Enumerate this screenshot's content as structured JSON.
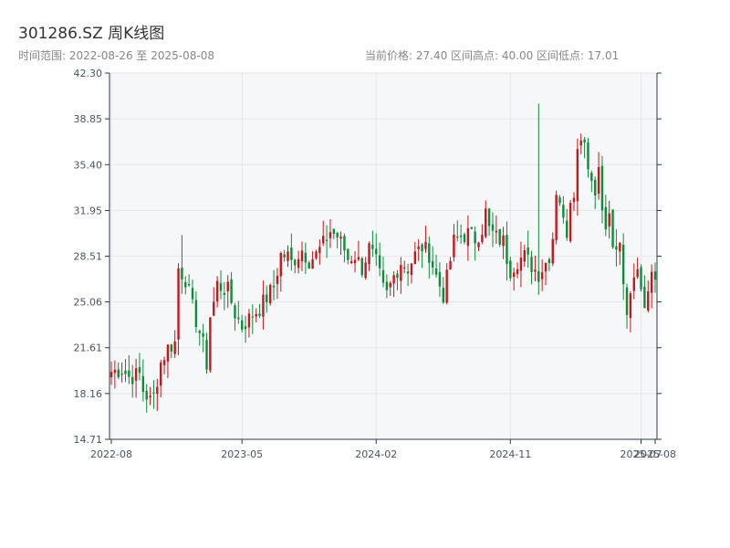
{
  "header": {
    "title": "301286.SZ 周K线图",
    "range_text": "时间范围: 2022-08-26 至 2025-08-08",
    "stats_text": "当前价格: 27.40  区间高点: 40.00  区间低点: 17.01"
  },
  "colors": {
    "up": "#c8161d",
    "down": "#0e8c3a",
    "plot_bg": "#f6f7f9",
    "grid": "#e3e6ea",
    "axis": "#2d3a4a"
  },
  "chart_data": {
    "type": "candlestick",
    "title": "301286.SZ 周K线图",
    "ylim": [
      14.71,
      42.3
    ],
    "y_ticks": [
      "42.30",
      "38.85",
      "35.40",
      "31.95",
      "28.51",
      "25.06",
      "21.61",
      "18.16",
      "14.71"
    ],
    "x_ticks": [
      "2022-08",
      "2023-05",
      "2024-02",
      "2024-11",
      "2025-07",
      "2025-08"
    ],
    "n_weeks": 155,
    "anchors": [
      [
        0,
        19.8
      ],
      [
        3,
        20.0
      ],
      [
        5,
        19.4
      ],
      [
        8,
        19.6
      ],
      [
        9,
        18.4
      ],
      [
        11,
        17.6
      ],
      [
        12,
        18.0
      ],
      [
        14,
        20.5
      ],
      [
        16,
        21.6
      ],
      [
        18,
        22.0
      ],
      [
        19,
        27.6
      ],
      [
        21,
        26.8
      ],
      [
        23,
        24.6
      ],
      [
        25,
        22.8
      ],
      [
        26,
        21.8
      ],
      [
        27,
        20.4
      ],
      [
        28,
        24.0
      ],
      [
        29,
        25.0
      ],
      [
        30,
        26.4
      ],
      [
        31,
        26.2
      ],
      [
        33,
        25.9
      ],
      [
        35,
        24.2
      ],
      [
        37,
        23.2
      ],
      [
        40,
        24.1
      ],
      [
        42,
        24.6
      ],
      [
        44,
        25.4
      ],
      [
        46,
        26.2
      ],
      [
        48,
        28.6
      ],
      [
        50,
        28.5
      ],
      [
        51,
        28.0
      ],
      [
        54,
        29.0
      ],
      [
        56,
        28.2
      ],
      [
        58,
        28.6
      ],
      [
        60,
        29.4
      ],
      [
        62,
        30.4
      ],
      [
        64,
        30.0
      ],
      [
        66,
        29.0
      ],
      [
        67,
        28.3
      ],
      [
        69,
        28.6
      ],
      [
        71,
        27.6
      ],
      [
        73,
        29.1
      ],
      [
        75,
        28.0
      ],
      [
        77,
        26.0
      ],
      [
        78,
        25.6
      ],
      [
        80,
        27.0
      ],
      [
        82,
        28.1
      ],
      [
        84,
        27.6
      ],
      [
        86,
        28.6
      ],
      [
        88,
        29.2
      ],
      [
        90,
        28.7
      ],
      [
        92,
        27.0
      ],
      [
        94,
        25.6
      ],
      [
        95,
        26.8
      ],
      [
        96,
        28.2
      ],
      [
        97,
        29.6
      ],
      [
        99,
        30.0
      ],
      [
        101,
        30.2
      ],
      [
        103,
        29.8
      ],
      [
        105,
        30.6
      ],
      [
        106,
        31.8
      ],
      [
        107,
        30.5
      ],
      [
        109,
        29.9
      ],
      [
        111,
        29.6
      ],
      [
        112,
        28.4
      ],
      [
        113,
        27.5
      ],
      [
        115,
        28.2
      ],
      [
        117,
        28.5
      ],
      [
        119,
        27.8
      ],
      [
        121,
        27.2
      ],
      [
        123,
        28.0
      ],
      [
        124,
        28.6
      ],
      [
        125,
        30.0
      ],
      [
        126,
        33.5
      ],
      [
        127,
        32.8
      ],
      [
        128,
        31.0
      ],
      [
        129,
        30.4
      ],
      [
        130,
        33.0
      ],
      [
        131,
        33.6
      ],
      [
        132,
        36.4
      ],
      [
        133,
        37.8
      ],
      [
        134,
        37.2
      ],
      [
        135,
        35.6
      ],
      [
        136,
        34.2
      ],
      [
        137,
        33.2
      ],
      [
        138,
        35.9
      ],
      [
        139,
        31.6
      ],
      [
        140,
        30.6
      ],
      [
        141,
        31.4
      ],
      [
        142,
        29.4
      ],
      [
        143,
        28.4
      ],
      [
        144,
        29.2
      ],
      [
        145,
        26.2
      ],
      [
        146,
        24.4
      ],
      [
        147,
        25.9
      ],
      [
        148,
        27.5
      ],
      [
        149,
        27.0
      ],
      [
        150,
        26.6
      ],
      [
        151,
        25.2
      ],
      [
        152,
        26.3
      ],
      [
        153,
        27.6
      ],
      [
        154,
        27.4
      ]
    ]
  }
}
